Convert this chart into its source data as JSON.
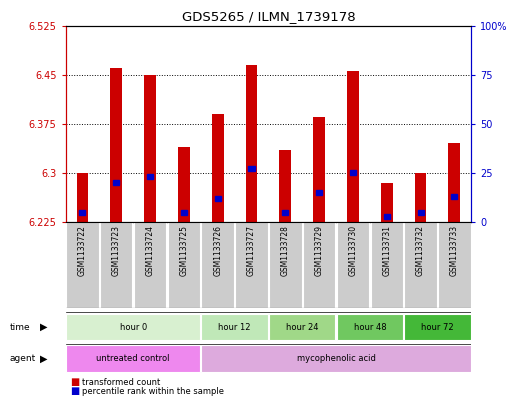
{
  "title": "GDS5265 / ILMN_1739178",
  "samples": [
    "GSM1133722",
    "GSM1133723",
    "GSM1133724",
    "GSM1133725",
    "GSM1133726",
    "GSM1133727",
    "GSM1133728",
    "GSM1133729",
    "GSM1133730",
    "GSM1133731",
    "GSM1133732",
    "GSM1133733"
  ],
  "transformed_count": [
    6.3,
    6.46,
    6.45,
    6.34,
    6.39,
    6.465,
    6.335,
    6.385,
    6.455,
    6.285,
    6.3,
    6.345
  ],
  "percentile_rank": [
    5,
    20,
    23,
    5,
    12,
    27,
    5,
    15,
    25,
    3,
    5,
    13
  ],
  "ymin": 6.225,
  "ymax": 6.525,
  "yticks": [
    6.225,
    6.3,
    6.375,
    6.45,
    6.525
  ],
  "right_yticks": [
    0,
    25,
    50,
    75,
    100
  ],
  "time_groups": [
    {
      "label": "hour 0",
      "start": 0,
      "end": 4,
      "color": "#d8f0d0"
    },
    {
      "label": "hour 12",
      "start": 4,
      "end": 6,
      "color": "#c0e8b8"
    },
    {
      "label": "hour 24",
      "start": 6,
      "end": 8,
      "color": "#a0d888"
    },
    {
      "label": "hour 48",
      "start": 8,
      "end": 10,
      "color": "#70c860"
    },
    {
      "label": "hour 72",
      "start": 10,
      "end": 12,
      "color": "#44b838"
    }
  ],
  "agent_groups": [
    {
      "label": "untreated control",
      "start": 0,
      "end": 4,
      "color": "#ee88ee"
    },
    {
      "label": "mycophenolic acid",
      "start": 4,
      "end": 12,
      "color": "#ddaadd"
    }
  ],
  "bar_color": "#cc0000",
  "percentile_color": "#0000cc",
  "baseline": 6.225,
  "legend_items": [
    {
      "label": "transformed count",
      "color": "#cc0000"
    },
    {
      "label": "percentile rank within the sample",
      "color": "#0000cc"
    }
  ],
  "left_axis_color": "#cc0000",
  "right_axis_color": "#0000cc",
  "sample_box_color": "#cccccc",
  "bar_width": 0.35
}
